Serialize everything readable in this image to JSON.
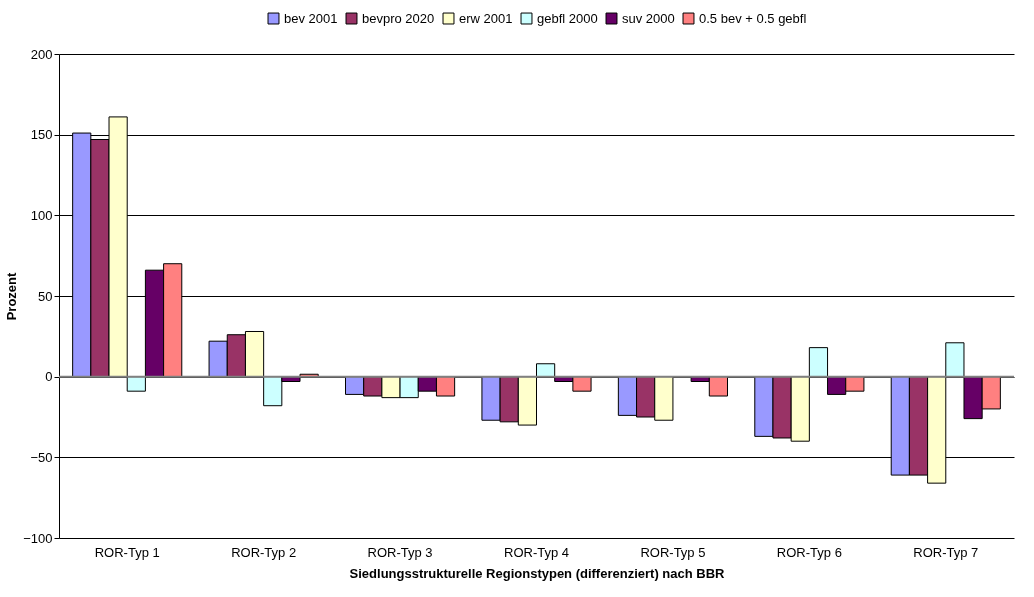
{
  "chart_data": {
    "type": "bar",
    "xlabel": "Siedlungsstrukturelle Regionstypen (differenziert) nach BBR",
    "ylabel": "Prozent",
    "categories": [
      "ROR-Typ 1",
      "ROR-Typ 2",
      "ROR-Typ 3",
      "ROR-Typ 4",
      "ROR-Typ 5",
      "ROR-Typ 6",
      "ROR-Typ 7"
    ],
    "series": [
      {
        "name": "bev 2001",
        "color": "#9999ff",
        "values": [
          151,
          22,
          -11,
          -27,
          -24,
          -37,
          -61
        ]
      },
      {
        "name": "bevpro 2020",
        "color": "#993366",
        "values": [
          147,
          26,
          -12,
          -28,
          -25,
          -38,
          -61
        ]
      },
      {
        "name": "erw 2001",
        "color": "#ffffcc",
        "values": [
          161,
          28,
          -13,
          -30,
          -27,
          -40,
          -66
        ]
      },
      {
        "name": "gebfl 2000",
        "color": "#ccffff",
        "values": [
          -9,
          -18,
          -13,
          8,
          null,
          18,
          21
        ]
      },
      {
        "name": "suv 2000",
        "color": "#660066",
        "values": [
          66,
          -3,
          -9,
          -3,
          -3,
          -11,
          -26
        ]
      },
      {
        "name": "0.5 bev + 0.5 gebfl",
        "color": "#ff8080",
        "values": [
          70,
          1.5,
          -12,
          -9,
          -12,
          -9,
          -20
        ]
      }
    ],
    "ylim": [
      -100,
      200
    ],
    "yticks": [
      -100,
      -50,
      0,
      50,
      100,
      150,
      200
    ],
    "grid": "y",
    "legend": "top"
  }
}
